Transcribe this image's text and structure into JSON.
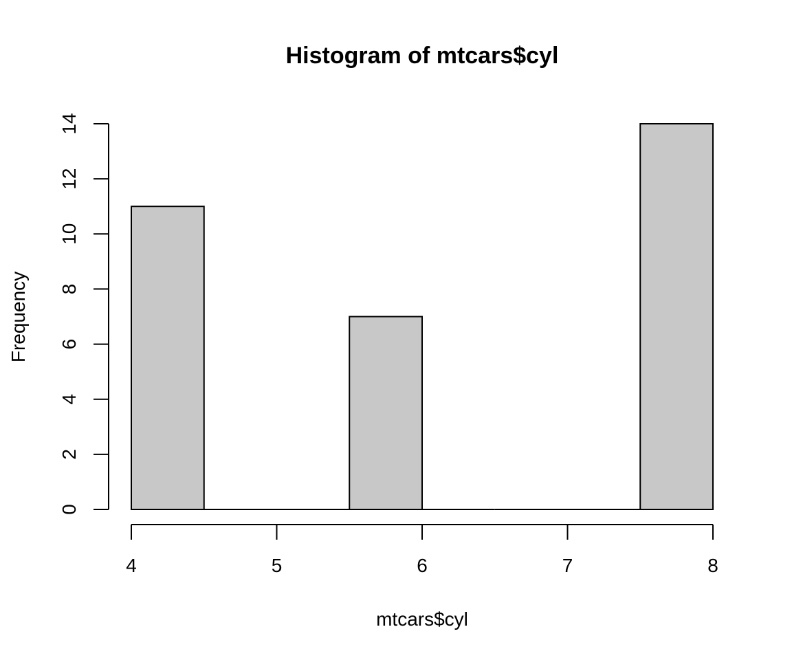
{
  "chart_data": {
    "type": "bar",
    "title": "Histogram of mtcars$cyl",
    "xlabel": "mtcars$cyl",
    "ylabel": "Frequency",
    "bins": [
      {
        "x0": 4.0,
        "x1": 4.5,
        "count": 11
      },
      {
        "x0": 4.5,
        "x1": 5.0,
        "count": 0
      },
      {
        "x0": 5.0,
        "x1": 5.5,
        "count": 0
      },
      {
        "x0": 5.5,
        "x1": 6.0,
        "count": 7
      },
      {
        "x0": 6.0,
        "x1": 6.5,
        "count": 0
      },
      {
        "x0": 6.5,
        "x1": 7.0,
        "count": 0
      },
      {
        "x0": 7.0,
        "x1": 7.5,
        "count": 0
      },
      {
        "x0": 7.5,
        "x1": 8.0,
        "count": 14
      }
    ],
    "xlim": [
      4,
      8
    ],
    "ylim": [
      0,
      14
    ],
    "xticks": [
      4,
      5,
      6,
      7,
      8
    ],
    "yticks": [
      0,
      2,
      4,
      6,
      8,
      10,
      12,
      14
    ],
    "bar_color": "#c8c8c8",
    "grid": false
  }
}
